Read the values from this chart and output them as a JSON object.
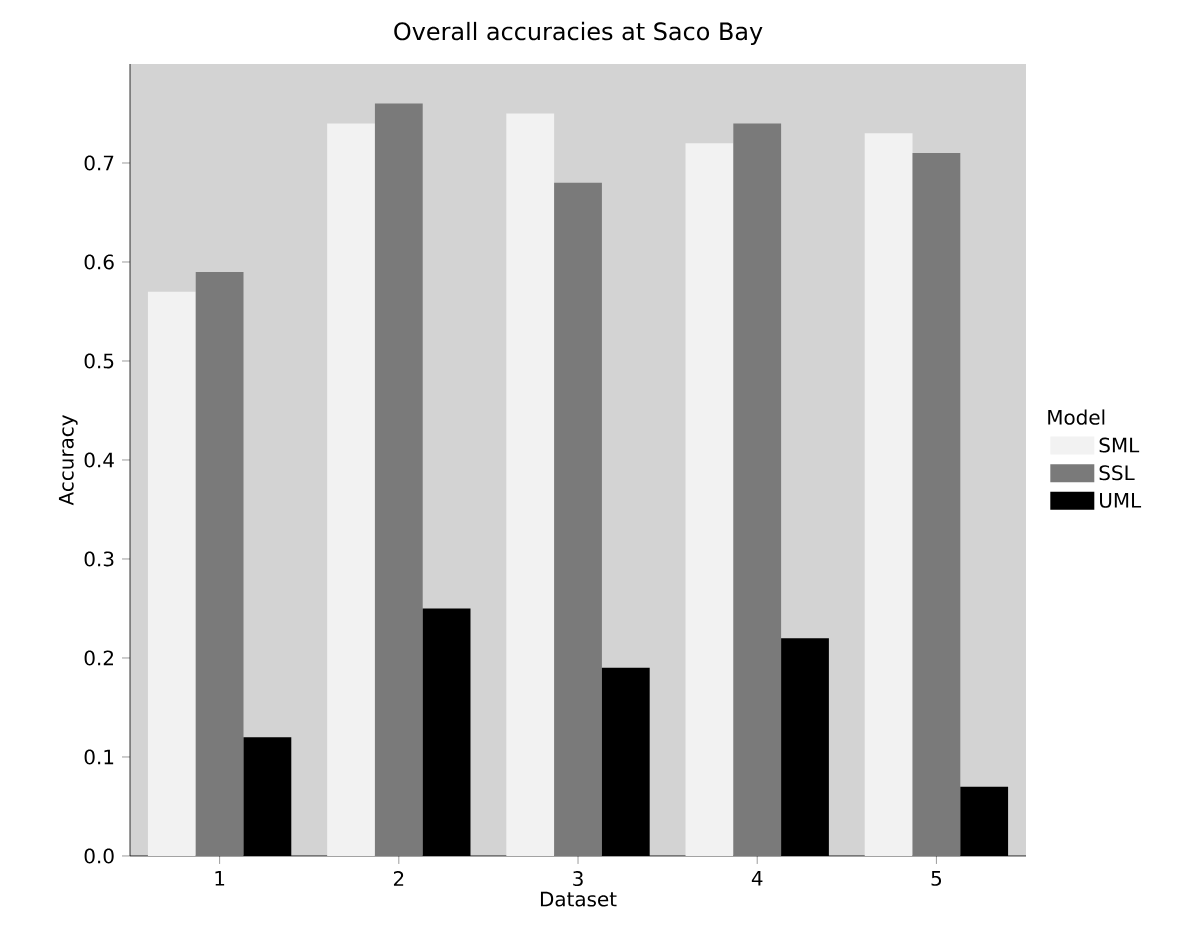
{
  "chart_data": {
    "type": "bar",
    "title": "Overall accuracies at Saco Bay",
    "xlabel": "Dataset",
    "ylabel": "Accuracy",
    "legend_title": "Model",
    "categories": [
      "1",
      "2",
      "3",
      "4",
      "5"
    ],
    "series": [
      {
        "name": "SML",
        "color": "#f2f2f2",
        "values": [
          0.57,
          0.74,
          0.75,
          0.72,
          0.73
        ]
      },
      {
        "name": "SSL",
        "color": "#7a7a7a",
        "values": [
          0.59,
          0.76,
          0.68,
          0.74,
          0.71
        ]
      },
      {
        "name": "UML",
        "color": "#000000",
        "values": [
          0.12,
          0.25,
          0.19,
          0.22,
          0.07
        ]
      }
    ],
    "ylim": [
      0,
      0.8
    ],
    "yticks": [
      {
        "value": 0,
        "label": "0.0"
      },
      0.1,
      0.2,
      0.3,
      0.4,
      0.5,
      0.6,
      0.7
    ],
    "grid": false,
    "legend": "right"
  }
}
